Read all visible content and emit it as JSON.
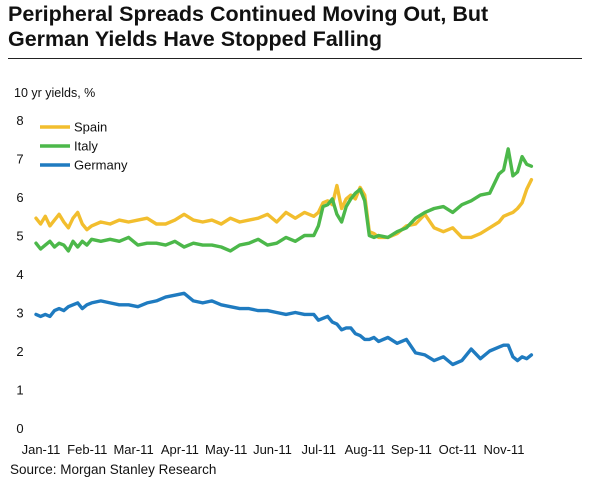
{
  "title_line1": "Peripheral Spreads Continued Moving Out, But",
  "title_line2": "German Yields Have Stopped Falling",
  "source": "Source:  Morgan Stanley Research",
  "chart_data": {
    "type": "line",
    "ylabel": "10 yr yields, %",
    "ylim": [
      0,
      8
    ],
    "yticks": [
      "0",
      "1",
      "2",
      "3",
      "4",
      "5",
      "6",
      "7",
      "8"
    ],
    "xlabels": [
      "Jan-11",
      "Feb-11",
      "Mar-11",
      "Apr-11",
      "May-11",
      "Jun-11",
      "Jul-11",
      "Aug-11",
      "Sep-11",
      "Oct-11",
      "Nov-11"
    ],
    "xlim": [
      0,
      10.8
    ],
    "grid": false,
    "legend_position": "top-left",
    "series": [
      {
        "name": "Spain",
        "color": "#F2BE2E",
        "x": [
          0,
          0.1,
          0.2,
          0.3,
          0.4,
          0.5,
          0.6,
          0.7,
          0.8,
          0.9,
          1.0,
          1.1,
          1.2,
          1.4,
          1.6,
          1.8,
          2.0,
          2.2,
          2.4,
          2.6,
          2.8,
          3.0,
          3.2,
          3.4,
          3.6,
          3.8,
          4.0,
          4.2,
          4.4,
          4.6,
          4.8,
          5.0,
          5.2,
          5.4,
          5.6,
          5.8,
          6.0,
          6.1,
          6.2,
          6.3,
          6.4,
          6.5,
          6.6,
          6.7,
          6.8,
          6.9,
          7.0,
          7.1,
          7.2,
          7.3,
          7.4,
          7.6,
          7.8,
          8.0,
          8.2,
          8.4,
          8.6,
          8.8,
          9.0,
          9.2,
          9.4,
          9.6,
          9.8,
          10.0,
          10.1,
          10.2,
          10.3,
          10.4,
          10.5,
          10.6,
          10.7
        ],
        "values": [
          5.45,
          5.3,
          5.5,
          5.25,
          5.4,
          5.55,
          5.35,
          5.2,
          5.45,
          5.6,
          5.3,
          5.15,
          5.25,
          5.35,
          5.3,
          5.4,
          5.35,
          5.4,
          5.45,
          5.3,
          5.3,
          5.4,
          5.55,
          5.4,
          5.35,
          5.4,
          5.3,
          5.45,
          5.35,
          5.4,
          5.45,
          5.55,
          5.35,
          5.6,
          5.45,
          5.6,
          5.5,
          5.6,
          5.85,
          5.9,
          5.8,
          6.3,
          5.7,
          5.95,
          6.05,
          5.95,
          6.25,
          6.05,
          5.1,
          5.05,
          4.95,
          4.95,
          5.05,
          5.25,
          5.3,
          5.55,
          5.2,
          5.1,
          5.2,
          4.95,
          4.95,
          5.05,
          5.2,
          5.35,
          5.5,
          5.55,
          5.6,
          5.7,
          5.85,
          6.2,
          6.45
        ]
      },
      {
        "name": "Italy",
        "color": "#4CB84A",
        "x": [
          0,
          0.1,
          0.2,
          0.3,
          0.4,
          0.5,
          0.6,
          0.7,
          0.8,
          0.9,
          1.0,
          1.1,
          1.2,
          1.4,
          1.6,
          1.8,
          2.0,
          2.2,
          2.4,
          2.6,
          2.8,
          3.0,
          3.2,
          3.4,
          3.6,
          3.8,
          4.0,
          4.2,
          4.4,
          4.6,
          4.8,
          5.0,
          5.2,
          5.4,
          5.6,
          5.8,
          6.0,
          6.1,
          6.2,
          6.3,
          6.4,
          6.5,
          6.6,
          6.7,
          6.8,
          6.9,
          7.0,
          7.1,
          7.2,
          7.3,
          7.4,
          7.6,
          7.8,
          8.0,
          8.2,
          8.4,
          8.6,
          8.8,
          9.0,
          9.2,
          9.4,
          9.6,
          9.8,
          10.0,
          10.1,
          10.2,
          10.3,
          10.4,
          10.5,
          10.6,
          10.7
        ],
        "values": [
          4.8,
          4.65,
          4.75,
          4.85,
          4.7,
          4.8,
          4.75,
          4.6,
          4.85,
          4.7,
          4.85,
          4.75,
          4.9,
          4.85,
          4.9,
          4.85,
          4.95,
          4.75,
          4.8,
          4.8,
          4.75,
          4.85,
          4.7,
          4.8,
          4.75,
          4.75,
          4.7,
          4.6,
          4.75,
          4.8,
          4.9,
          4.75,
          4.8,
          4.95,
          4.85,
          5.0,
          5.0,
          5.25,
          5.75,
          5.8,
          5.95,
          5.55,
          5.35,
          5.75,
          5.95,
          6.1,
          6.2,
          5.9,
          5.0,
          4.95,
          5.0,
          4.95,
          5.1,
          5.2,
          5.45,
          5.6,
          5.7,
          5.75,
          5.6,
          5.8,
          5.9,
          6.05,
          6.1,
          6.6,
          6.7,
          7.25,
          6.55,
          6.65,
          7.05,
          6.85,
          6.8
        ]
      },
      {
        "name": "Germany",
        "color": "#1F7BC0",
        "x": [
          0,
          0.1,
          0.2,
          0.3,
          0.4,
          0.5,
          0.6,
          0.7,
          0.8,
          0.9,
          1.0,
          1.1,
          1.2,
          1.4,
          1.6,
          1.8,
          2.0,
          2.2,
          2.4,
          2.6,
          2.8,
          3.0,
          3.2,
          3.4,
          3.6,
          3.8,
          4.0,
          4.2,
          4.4,
          4.6,
          4.8,
          5.0,
          5.2,
          5.4,
          5.6,
          5.8,
          6.0,
          6.1,
          6.2,
          6.3,
          6.4,
          6.5,
          6.6,
          6.7,
          6.8,
          6.9,
          7.0,
          7.1,
          7.2,
          7.3,
          7.4,
          7.6,
          7.8,
          8.0,
          8.2,
          8.4,
          8.6,
          8.8,
          9.0,
          9.2,
          9.4,
          9.6,
          9.8,
          10.0,
          10.1,
          10.2,
          10.3,
          10.4,
          10.5,
          10.6,
          10.7
        ],
        "values": [
          2.95,
          2.9,
          2.95,
          2.9,
          3.05,
          3.1,
          3.05,
          3.15,
          3.2,
          3.25,
          3.1,
          3.2,
          3.25,
          3.3,
          3.25,
          3.2,
          3.2,
          3.15,
          3.25,
          3.3,
          3.4,
          3.45,
          3.5,
          3.3,
          3.25,
          3.3,
          3.2,
          3.15,
          3.1,
          3.1,
          3.05,
          3.05,
          3.0,
          2.95,
          3.0,
          2.95,
          2.95,
          2.8,
          2.85,
          2.9,
          2.75,
          2.7,
          2.55,
          2.6,
          2.6,
          2.45,
          2.4,
          2.3,
          2.3,
          2.35,
          2.25,
          2.35,
          2.2,
          2.3,
          1.95,
          1.9,
          1.75,
          1.85,
          1.65,
          1.75,
          2.05,
          1.8,
          2.0,
          2.1,
          2.15,
          2.15,
          1.85,
          1.75,
          1.85,
          1.8,
          1.9
        ]
      }
    ]
  }
}
